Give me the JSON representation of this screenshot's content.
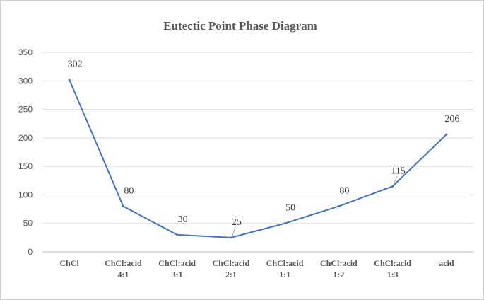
{
  "chart_data": {
    "type": "line",
    "title": "Eutectic Point Phase Diagram",
    "xlabel": "",
    "ylabel": "",
    "ylim": [
      0,
      350
    ],
    "ytick_step": 50,
    "grid": true,
    "legend": "none",
    "categories": [
      [
        "ChCl"
      ],
      [
        "ChCl:acid",
        "4:1"
      ],
      [
        "ChCl:acid",
        "3:1"
      ],
      [
        "ChCl:acid",
        "2:1"
      ],
      [
        "ChCl:acid",
        "1:1"
      ],
      [
        "ChCl:acid",
        "1:2"
      ],
      [
        "ChCl:acid",
        "1:3"
      ],
      [
        "acid"
      ]
    ],
    "series": [
      {
        "values": [
          302,
          80,
          30,
          25,
          50,
          80,
          115,
          206
        ],
        "data_labels": [
          "302",
          "80",
          "30",
          "25",
          "50",
          "80",
          "115",
          "206"
        ]
      }
    ],
    "line_color": "#4472c4"
  }
}
